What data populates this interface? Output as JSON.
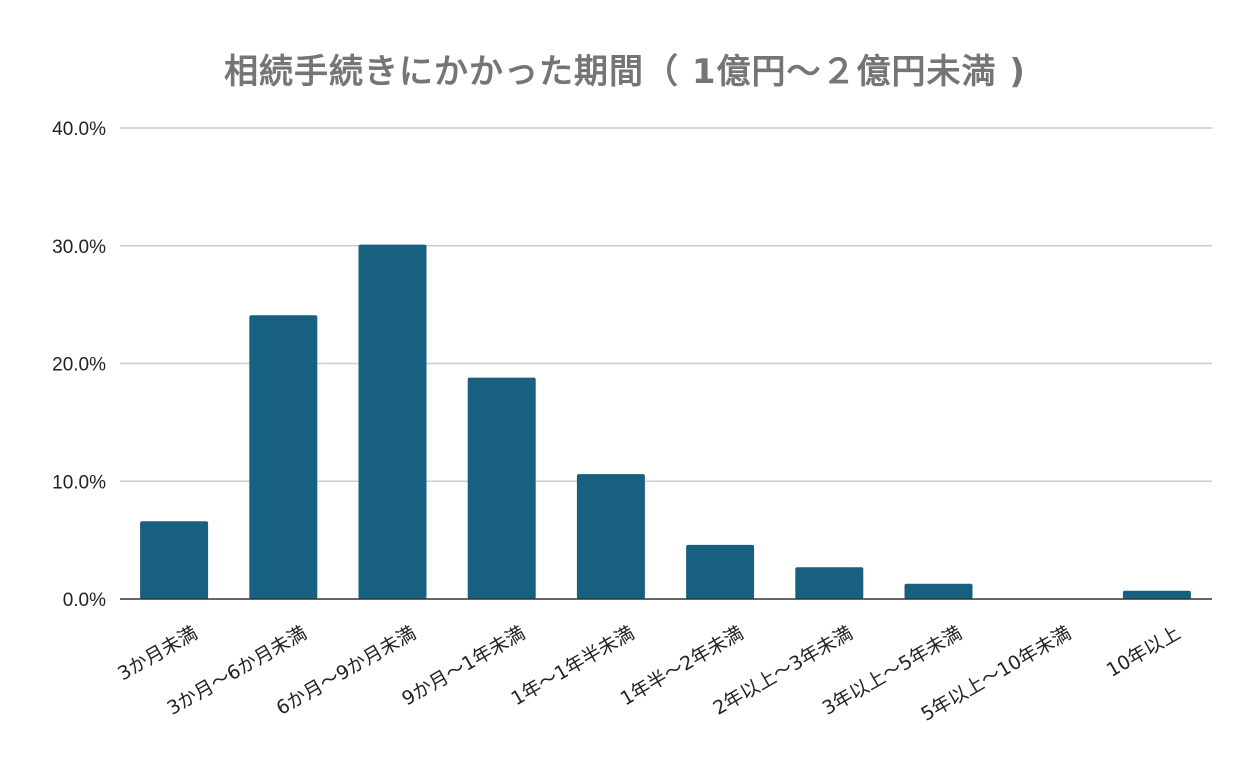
{
  "chart_data": {
    "type": "bar",
    "title": "相続手続きにかかった期間（ 1億円～２億円未満 )",
    "xlabel": "",
    "ylabel": "",
    "categories": [
      "3か月未満",
      "3か月～6か月未満",
      "6か月～9か月未満",
      "9か月～1年未満",
      "1年～1年半未満",
      "1年半～2年未満",
      "2年以上～3年未満",
      "3年以上～5年未満",
      "5年以上～10年未満",
      "10年以上"
    ],
    "values": [
      6.6,
      24.1,
      30.1,
      18.8,
      10.6,
      4.6,
      2.7,
      1.3,
      0.0,
      0.7
    ],
    "ylim": [
      0,
      40
    ],
    "y_ticks": [
      "0.0%",
      "10.0%",
      "20.0%",
      "30.0%",
      "40.0%"
    ],
    "grid": true,
    "legend": "none",
    "colors": {
      "bar": "#17607f",
      "gridline": "#cccccc",
      "baseline": "#333333",
      "title": "#757575"
    }
  }
}
